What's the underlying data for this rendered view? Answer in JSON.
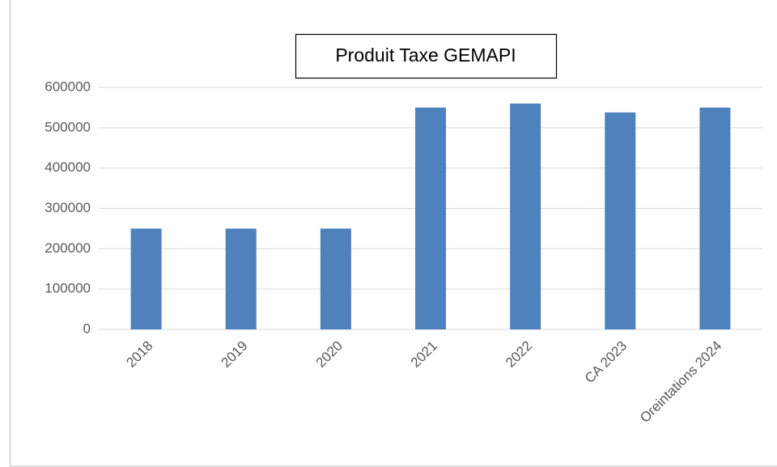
{
  "chart_data": {
    "type": "bar",
    "title": "Produit Taxe GEMAPI",
    "categories": [
      "2018",
      "2019",
      "2020",
      "2021",
      "2022",
      "CA 2023",
      "Oreintations 2024"
    ],
    "values": [
      250000,
      250000,
      250000,
      550000,
      560000,
      538000,
      550000
    ],
    "color": "#4f81bd",
    "ylim": [
      0,
      600000
    ],
    "yticks": [
      0,
      100000,
      200000,
      300000,
      400000,
      500000,
      600000
    ],
    "grid": true
  }
}
